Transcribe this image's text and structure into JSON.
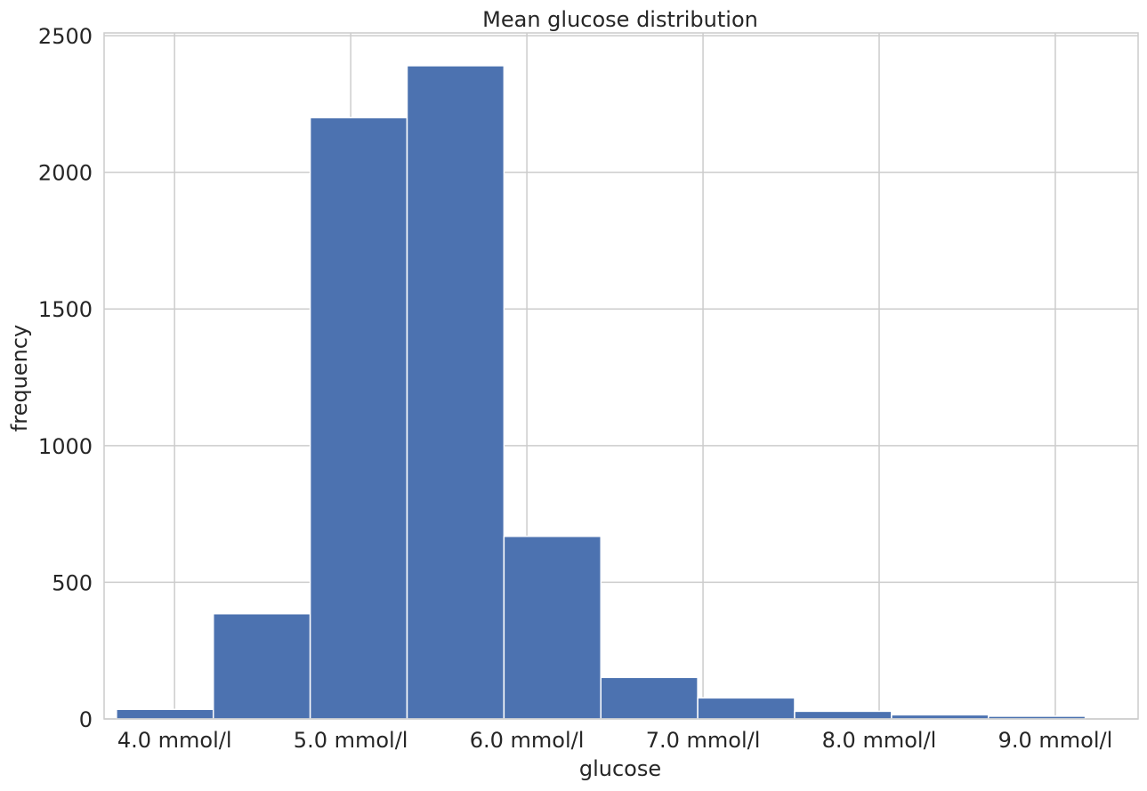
{
  "chart_data": {
    "type": "bar",
    "title": "Mean glucose distribution",
    "xlabel": "glucose",
    "ylabel": "frequency",
    "x_unit_suffix": " mmol/l",
    "xlim": [
      3.6,
      9.47
    ],
    "ylim": [
      0,
      2510
    ],
    "x_ticks": [
      4.0,
      5.0,
      6.0,
      7.0,
      8.0,
      9.0
    ],
    "x_tick_labels": [
      "4.0 mmol/l",
      "5.0 mmol/l",
      "6.0 mmol/l",
      "7.0 mmol/l",
      "8.0 mmol/l",
      "9.0 mmol/l"
    ],
    "y_ticks": [
      0,
      500,
      1000,
      1500,
      2000,
      2500
    ],
    "y_tick_labels": [
      "0",
      "500",
      "1000",
      "1500",
      "2000",
      "2500"
    ],
    "grid": true,
    "bins": [
      {
        "start": 3.67,
        "end": 4.22,
        "value": 35
      },
      {
        "start": 4.22,
        "end": 4.77,
        "value": 385
      },
      {
        "start": 4.77,
        "end": 5.32,
        "value": 2200
      },
      {
        "start": 5.32,
        "end": 5.87,
        "value": 2390
      },
      {
        "start": 5.87,
        "end": 6.42,
        "value": 668
      },
      {
        "start": 6.42,
        "end": 6.97,
        "value": 152
      },
      {
        "start": 6.97,
        "end": 7.52,
        "value": 77
      },
      {
        "start": 7.52,
        "end": 8.07,
        "value": 28
      },
      {
        "start": 8.07,
        "end": 8.62,
        "value": 15
      },
      {
        "start": 8.62,
        "end": 9.17,
        "value": 10
      }
    ],
    "bar_color": "#4c72b0"
  }
}
